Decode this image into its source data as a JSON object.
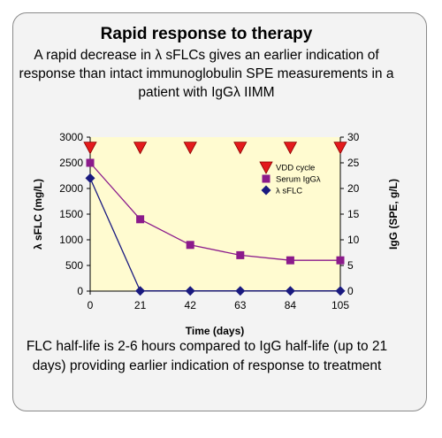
{
  "chart_data": {
    "type": "line",
    "title": "Rapid response to therapy",
    "subtitle": "A rapid decrease in λ sFLCs gives an earlier indication of response than intact immunoglobulin SPE measurements in a patient with IgGλ IIMM",
    "xlabel": "Time (days)",
    "ylabel_left": "λ sFLC (mg/L)",
    "ylabel_right": "IgG (SPE, g/L)",
    "x": [
      0,
      21,
      42,
      63,
      84,
      105
    ],
    "x_tick_labels": [
      "0",
      "21",
      "42",
      "63",
      "84",
      "105"
    ],
    "y_left_ticks": [
      "0",
      "500",
      "1000",
      "1500",
      "2000",
      "2500",
      "3000"
    ],
    "y_right_ticks": [
      "0",
      "5",
      "10",
      "15",
      "20",
      "25",
      "30"
    ],
    "ylim_left": [
      0,
      3000
    ],
    "ylim_right": [
      0,
      30
    ],
    "grid": false,
    "legend_position": "top-right",
    "series": [
      {
        "name": "VDD cycle",
        "axis": "right",
        "marker": "down-triangle",
        "color": "#e31a1c",
        "line": false,
        "values": [
          28,
          28,
          28,
          28,
          28,
          28
        ]
      },
      {
        "name": "Serum IgGλ",
        "axis": "right",
        "marker": "square",
        "color": "#8b1a8b",
        "line": true,
        "values": [
          25,
          14,
          9,
          7,
          6,
          6
        ]
      },
      {
        "name": "λ sFLC",
        "axis": "left",
        "marker": "diamond",
        "color": "#1a1a80",
        "line": true,
        "values": [
          2200,
          5,
          5,
          5,
          5,
          5
        ]
      }
    ]
  },
  "footer": "FLC half-life is 2-6 hours compared to IgG half-life (up to 21 days) providing earlier indication of response to treatment",
  "colors": {
    "plot_background": "#fffbd0",
    "card_background": "#f3f3f3"
  }
}
